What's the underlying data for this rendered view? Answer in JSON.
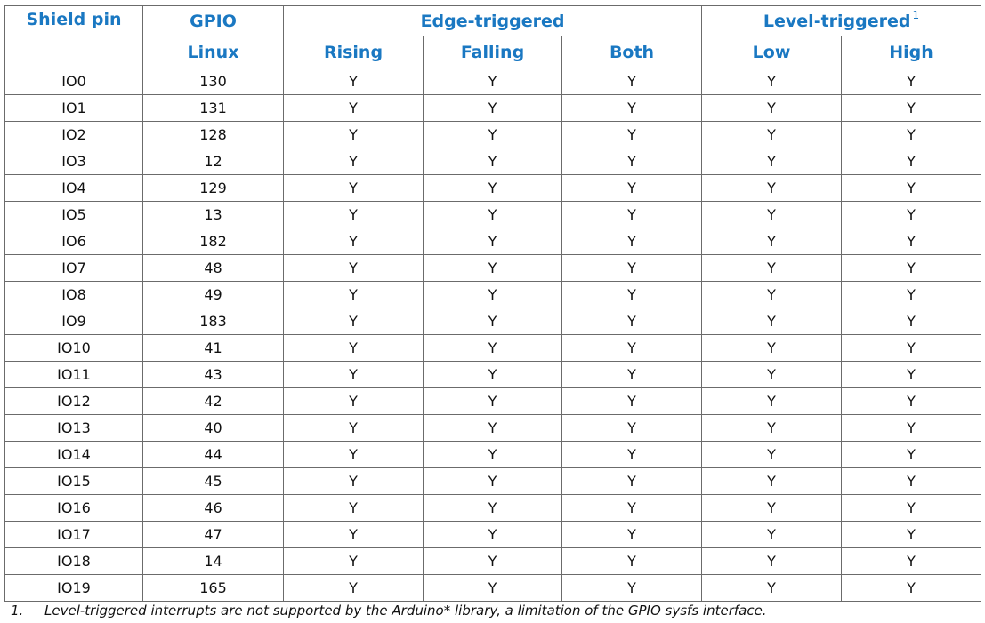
{
  "table": {
    "headers": {
      "shield_pin": "Shield pin",
      "gpio": "GPIO",
      "linux": "Linux",
      "edge_triggered": "Edge-triggered",
      "level_triggered": "Level-triggered",
      "level_triggered_note": "1",
      "rising": "Rising",
      "falling": "Falling",
      "both": "Both",
      "low": "Low",
      "high": "High"
    },
    "rows": [
      {
        "pin": "IO0",
        "linux": "130",
        "rising": "Y",
        "falling": "Y",
        "both": "Y",
        "low": "Y",
        "high": "Y"
      },
      {
        "pin": "IO1",
        "linux": "131",
        "rising": "Y",
        "falling": "Y",
        "both": "Y",
        "low": "Y",
        "high": "Y"
      },
      {
        "pin": "IO2",
        "linux": "128",
        "rising": "Y",
        "falling": "Y",
        "both": "Y",
        "low": "Y",
        "high": "Y"
      },
      {
        "pin": "IO3",
        "linux": "12",
        "rising": "Y",
        "falling": "Y",
        "both": "Y",
        "low": "Y",
        "high": "Y"
      },
      {
        "pin": "IO4",
        "linux": "129",
        "rising": "Y",
        "falling": "Y",
        "both": "Y",
        "low": "Y",
        "high": "Y"
      },
      {
        "pin": "IO5",
        "linux": "13",
        "rising": "Y",
        "falling": "Y",
        "both": "Y",
        "low": "Y",
        "high": "Y"
      },
      {
        "pin": "IO6",
        "linux": "182",
        "rising": "Y",
        "falling": "Y",
        "both": "Y",
        "low": "Y",
        "high": "Y"
      },
      {
        "pin": "IO7",
        "linux": "48",
        "rising": "Y",
        "falling": "Y",
        "both": "Y",
        "low": "Y",
        "high": "Y"
      },
      {
        "pin": "IO8",
        "linux": "49",
        "rising": "Y",
        "falling": "Y",
        "both": "Y",
        "low": "Y",
        "high": "Y"
      },
      {
        "pin": "IO9",
        "linux": "183",
        "rising": "Y",
        "falling": "Y",
        "both": "Y",
        "low": "Y",
        "high": "Y"
      },
      {
        "pin": "IO10",
        "linux": "41",
        "rising": "Y",
        "falling": "Y",
        "both": "Y",
        "low": "Y",
        "high": "Y"
      },
      {
        "pin": "IO11",
        "linux": "43",
        "rising": "Y",
        "falling": "Y",
        "both": "Y",
        "low": "Y",
        "high": "Y"
      },
      {
        "pin": "IO12",
        "linux": "42",
        "rising": "Y",
        "falling": "Y",
        "both": "Y",
        "low": "Y",
        "high": "Y"
      },
      {
        "pin": "IO13",
        "linux": "40",
        "rising": "Y",
        "falling": "Y",
        "both": "Y",
        "low": "Y",
        "high": "Y"
      },
      {
        "pin": "IO14",
        "linux": "44",
        "rising": "Y",
        "falling": "Y",
        "both": "Y",
        "low": "Y",
        "high": "Y"
      },
      {
        "pin": "IO15",
        "linux": "45",
        "rising": "Y",
        "falling": "Y",
        "both": "Y",
        "low": "Y",
        "high": "Y"
      },
      {
        "pin": "IO16",
        "linux": "46",
        "rising": "Y",
        "falling": "Y",
        "both": "Y",
        "low": "Y",
        "high": "Y"
      },
      {
        "pin": "IO17",
        "linux": "47",
        "rising": "Y",
        "falling": "Y",
        "both": "Y",
        "low": "Y",
        "high": "Y"
      },
      {
        "pin": "IO18",
        "linux": "14",
        "rising": "Y",
        "falling": "Y",
        "both": "Y",
        "low": "Y",
        "high": "Y"
      },
      {
        "pin": "IO19",
        "linux": "165",
        "rising": "Y",
        "falling": "Y",
        "both": "Y",
        "low": "Y",
        "high": "Y"
      }
    ]
  },
  "footnote": {
    "number": "1.",
    "text": "Level-triggered interrupts are not supported by the Arduino* library, a limitation of the GPIO sysfs interface."
  },
  "colors": {
    "header_text": "#1a78c2",
    "border": "#6b6b6b",
    "body_text": "#111111"
  }
}
